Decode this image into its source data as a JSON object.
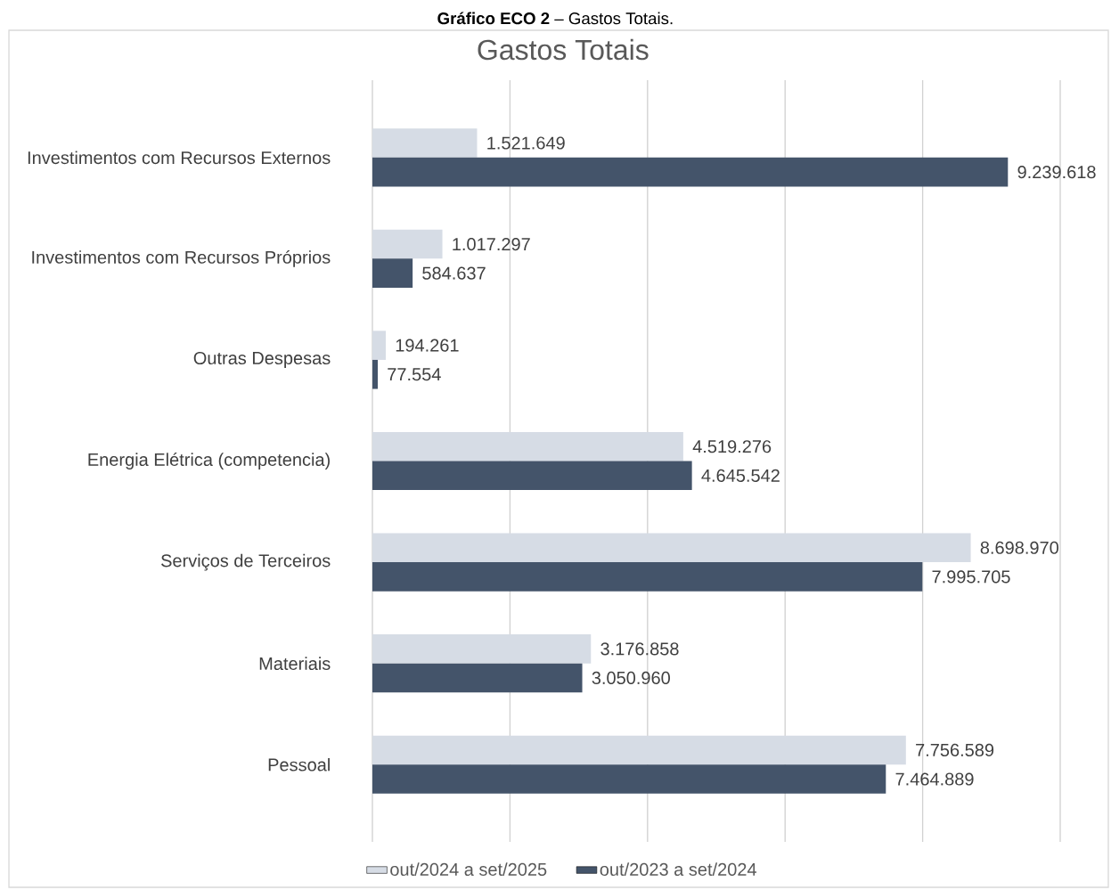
{
  "chart_data": {
    "type": "bar",
    "orientation": "horizontal",
    "title": "Gastos Totais",
    "annotations": [
      "**Gráfico ECO 2** – Gastos Totais."
    ],
    "categories": [
      "Investimentos com Recursos Externos",
      "Investimentos com Recursos Próprios",
      "Outras Despesas",
      "Energia Elétrica (competencia)",
      "Serviços de Terceiros",
      "Materiais",
      "Pessoal"
    ],
    "series": [
      {
        "name": "out/2024 a set/2025",
        "color": "#d6dce5",
        "values": [
          1521649,
          1017297,
          194261,
          4519276,
          8698970,
          3176858,
          7756589
        ],
        "value_labels": [
          "1.521.649",
          "1.017.297",
          "194.261",
          "4.519.276",
          "8.698.970",
          "3.176.858",
          "7.756.589"
        ]
      },
      {
        "name": "out/2023 a set/2024",
        "color": "#44546a",
        "values": [
          9239618,
          584637,
          77554,
          4645542,
          7995705,
          3050960,
          7464889
        ],
        "value_labels": [
          "9.239.618",
          "584.637",
          "77.554",
          "4.645.542",
          "7.995.705",
          "3.050.960",
          "7.464.889"
        ]
      }
    ],
    "xlim": [
      0,
      10000000
    ],
    "xticks": [
      {
        "value": 0,
        "label": null
      },
      {
        "value": 2000000,
        "label": null
      },
      {
        "value": 4000000,
        "label": null
      },
      {
        "value": 6000000,
        "label": null
      },
      {
        "value": 8000000,
        "label": null
      },
      {
        "value": 10000000,
        "label": null
      }
    ],
    "grid": "x",
    "legend": "bottom",
    "tick_labels": "y"
  }
}
